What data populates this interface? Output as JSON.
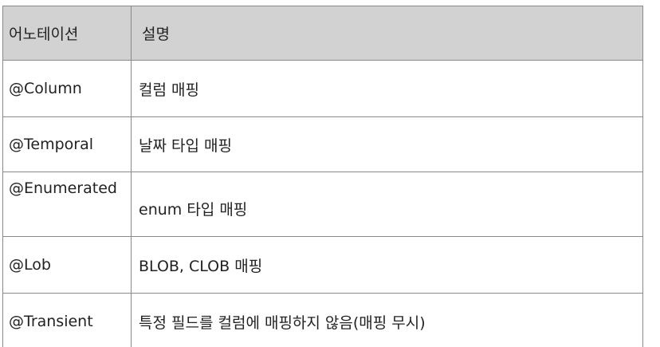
{
  "table": {
    "headers": [
      "어노테이션",
      "설명"
    ],
    "rows": [
      [
        "@Column",
        "컬럼 매핑"
      ],
      [
        "@Temporal",
        "날짜 타입 매핑"
      ],
      [
        "@Enumerated",
        "enum 타입 매핑"
      ],
      [
        "@Lob",
        "BLOB, CLOB 매핑"
      ],
      [
        "@Transient",
        "특정 필드를 컬럼에 매핑하지 않음(매핑 무시)"
      ]
    ]
  },
  "colors": {
    "header_background": "#d2d2d2",
    "border": "#8a8a8a",
    "text": "#222222"
  }
}
